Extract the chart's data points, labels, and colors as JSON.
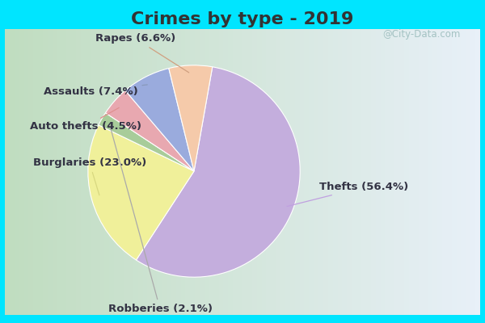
{
  "title": "Crimes by type - 2019",
  "slices": [
    {
      "label": "Thefts",
      "pct": 56.4,
      "color": "#c4aedd"
    },
    {
      "label": "Burglaries",
      "pct": 23.0,
      "color": "#f0f09a"
    },
    {
      "label": "Robberies",
      "pct": 2.1,
      "color": "#a8cc9a"
    },
    {
      "label": "Auto thefts",
      "pct": 4.5,
      "color": "#e8a8b0"
    },
    {
      "label": "Assaults",
      "pct": 7.4,
      "color": "#9aabdd"
    },
    {
      "label": "Rapes",
      "pct": 6.6,
      "color": "#f5caaa"
    }
  ],
  "title_fontsize": 16,
  "label_fontsize": 9.5,
  "bg_outer": "#00e5ff",
  "bg_inner_left": "#b8ddb8",
  "bg_inner_right": "#e8f0f8",
  "watermark": "@City-Data.com",
  "title_color": "#333333"
}
